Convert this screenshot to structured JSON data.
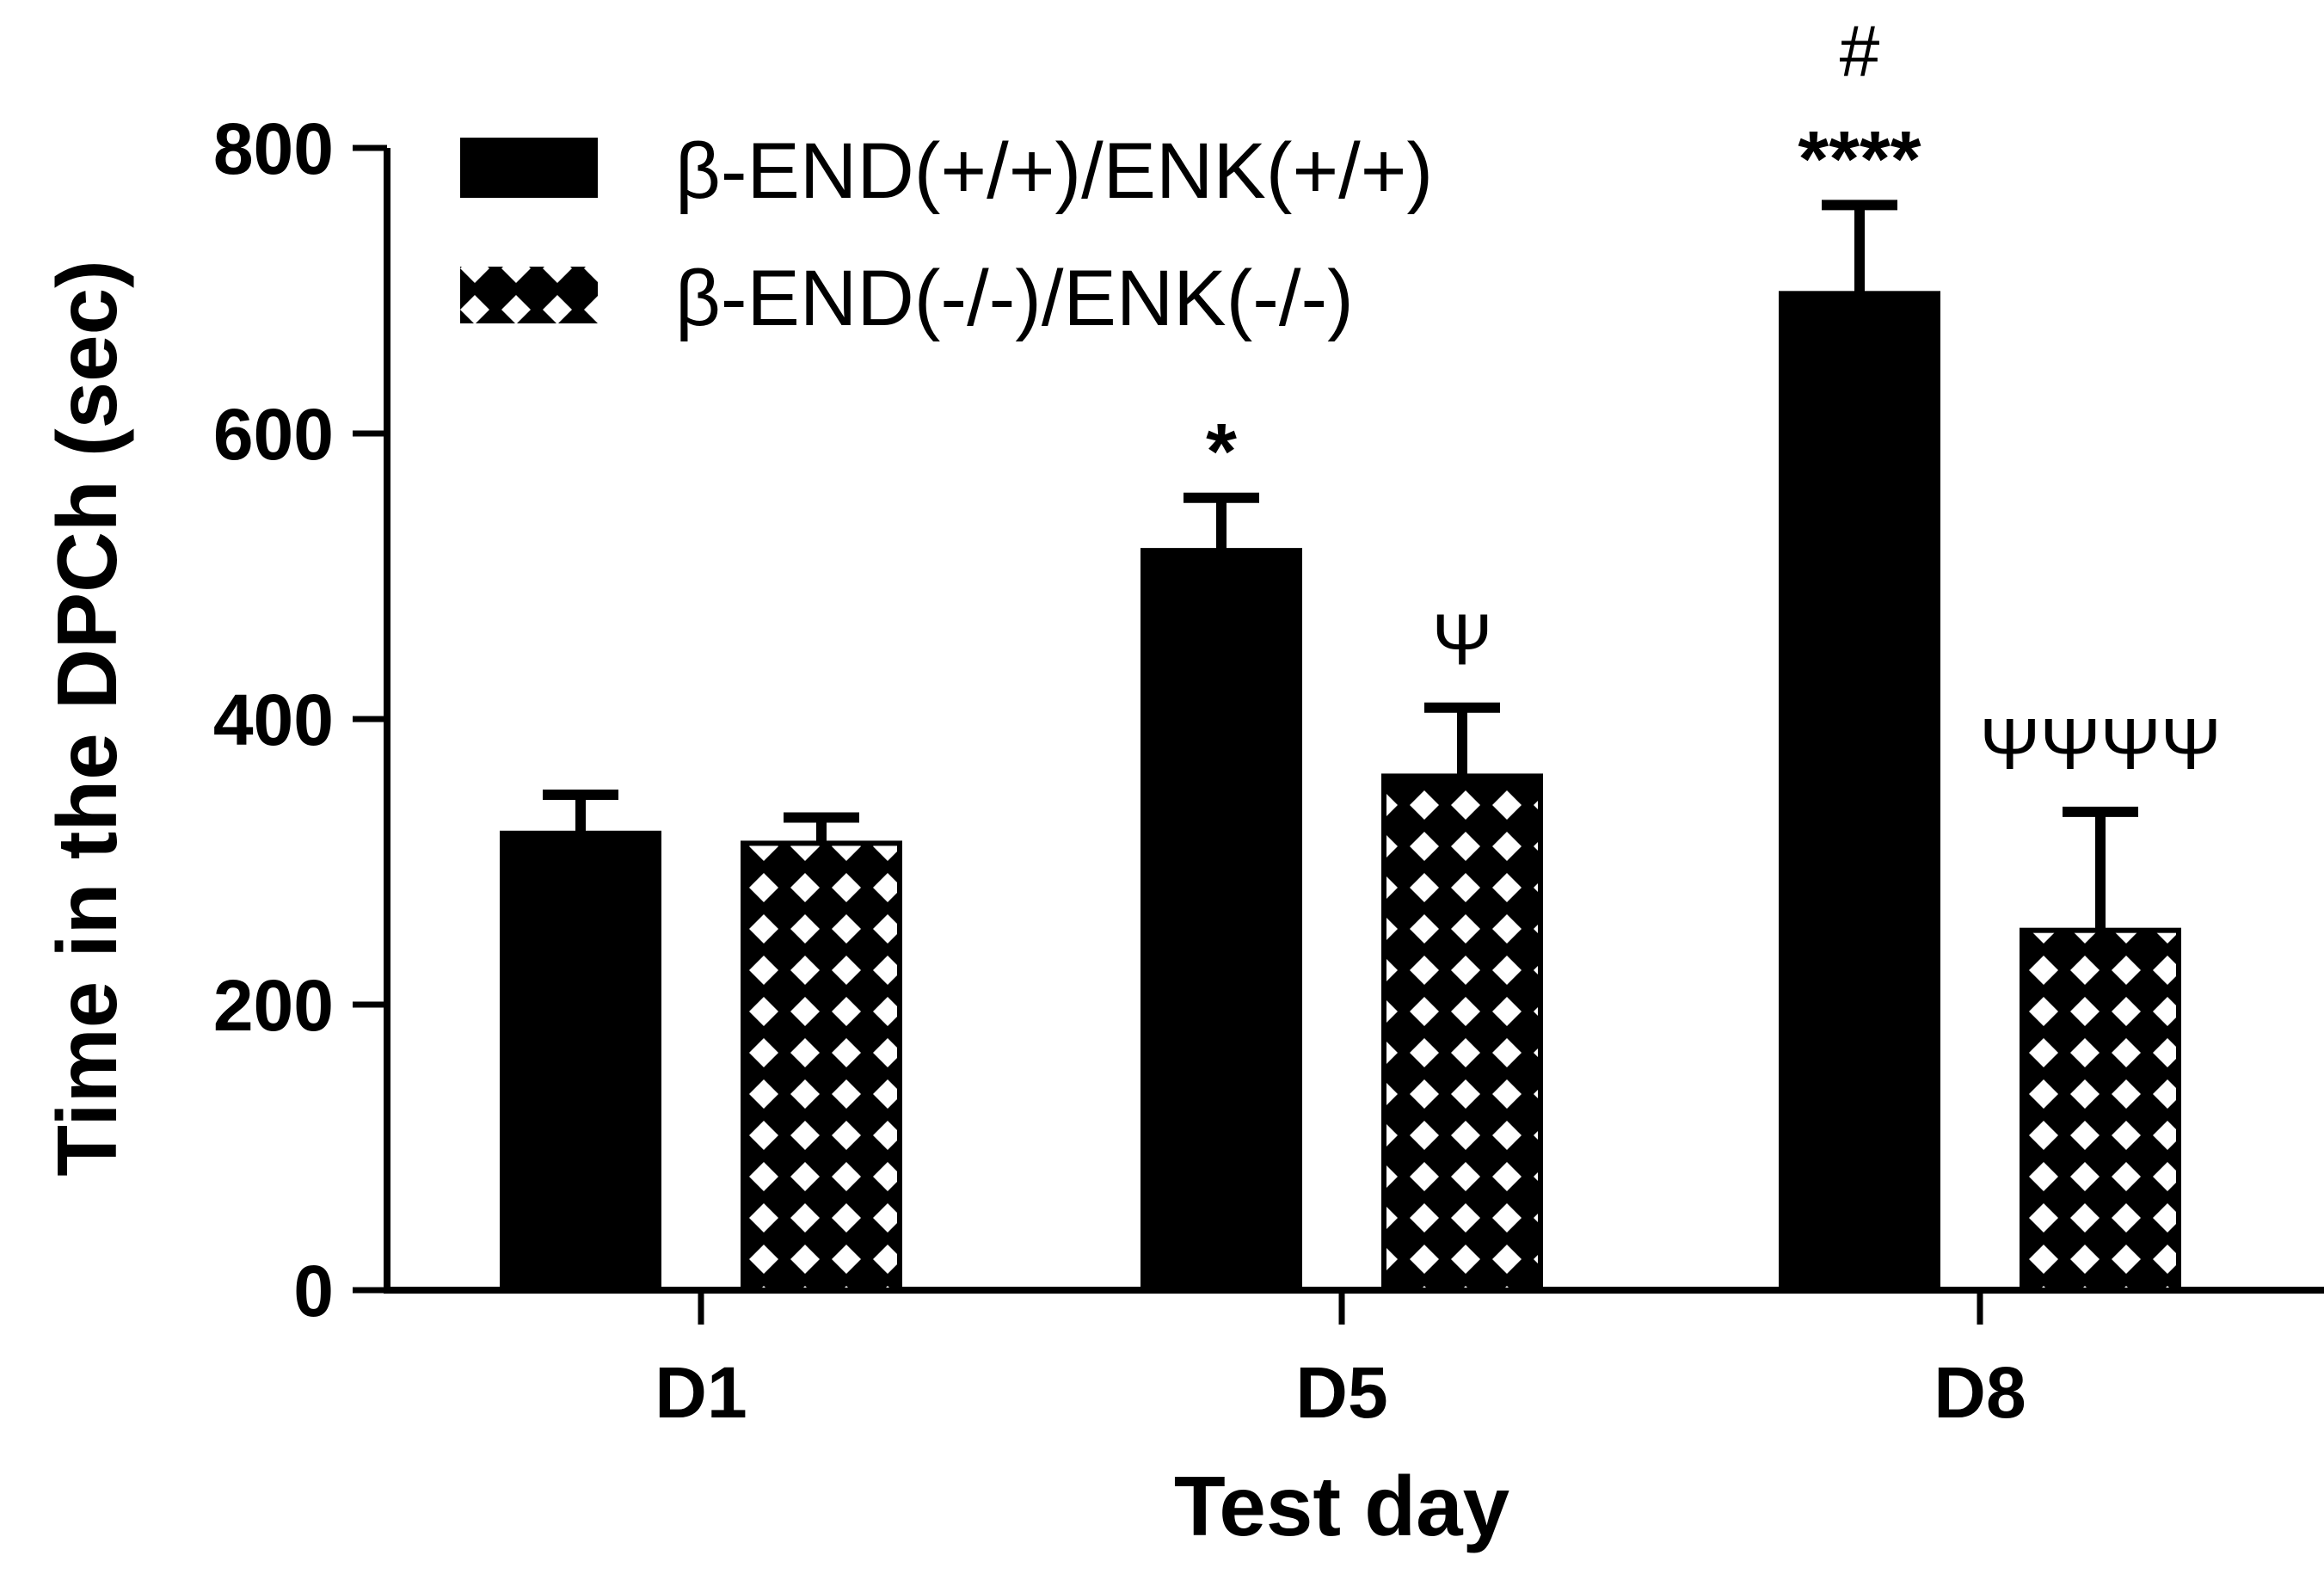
{
  "chart_data": {
    "type": "bar",
    "xlabel": "Test day",
    "ylabel": "Time in the DPCh (sec)",
    "ylim": [
      0,
      800
    ],
    "yticks": [
      0,
      200,
      400,
      600,
      800
    ],
    "categories": [
      "D1",
      "D5",
      "D8"
    ],
    "legend_position": "top-left",
    "series": [
      {
        "name": "β-END(+/+)/ENK(+/+)",
        "fill": "solid",
        "color": "#000000",
        "values": [
          320,
          518,
          698
        ],
        "errors": [
          27,
          37,
          62
        ],
        "annotations": [
          "",
          "*",
          "****"
        ],
        "annotations_top": [
          "",
          "",
          "#"
        ]
      },
      {
        "name": "β-END(-/-)/ENK(-/-)",
        "fill": "crosshatch",
        "color": "#000000",
        "values": [
          313,
          360,
          252
        ],
        "errors": [
          18,
          48,
          83
        ],
        "annotations": [
          "",
          "Ψ",
          "ΨΨΨΨ"
        ],
        "annotations_top": [
          "",
          "",
          ""
        ]
      }
    ]
  }
}
